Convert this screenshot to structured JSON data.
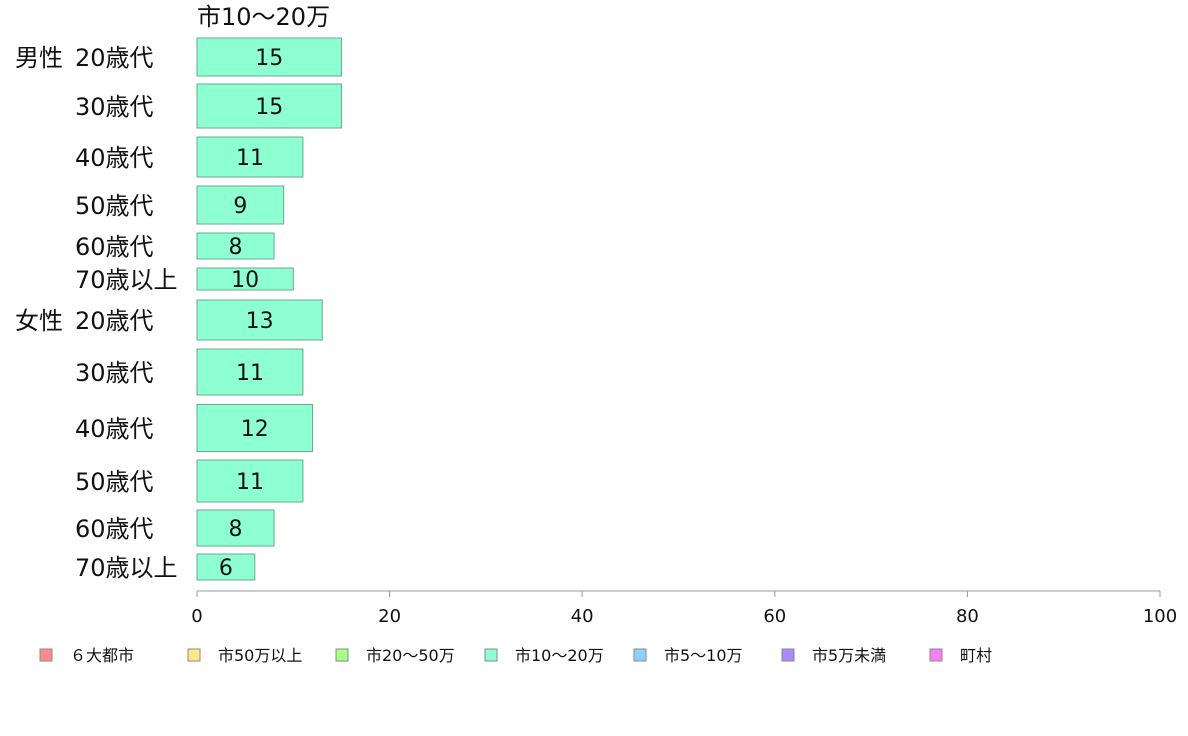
{
  "chart_data": {
    "type": "bar",
    "orientation": "horizontal",
    "series_header": "市10〜20万",
    "groups": [
      {
        "name": "男性",
        "rows": [
          {
            "label": "20歳代",
            "value": 15
          },
          {
            "label": "30歳代",
            "value": 15
          },
          {
            "label": "40歳代",
            "value": 11
          },
          {
            "label": "50歳代",
            "value": 9
          },
          {
            "label": "60歳代",
            "value": 8
          },
          {
            "label": "70歳以上",
            "value": 10
          }
        ]
      },
      {
        "name": "女性",
        "rows": [
          {
            "label": "20歳代",
            "value": 13
          },
          {
            "label": "30歳代",
            "value": 11
          },
          {
            "label": "40歳代",
            "value": 12
          },
          {
            "label": "50歳代",
            "value": 11
          },
          {
            "label": "60歳代",
            "value": 8
          },
          {
            "label": "70歳以上",
            "value": 6
          }
        ]
      }
    ],
    "xlim": [
      0,
      100
    ],
    "xticks": [
      0,
      20,
      40,
      60,
      80,
      100
    ],
    "bar_color": "#8effd0",
    "legend_position": "bottom",
    "legend": [
      {
        "name": "６大都市",
        "color": "#ff8a8a"
      },
      {
        "name": "市50万以上",
        "color": "#ffe88a"
      },
      {
        "name": "市20〜50万",
        "color": "#a6ff8a"
      },
      {
        "name": "市10〜20万",
        "color": "#8effd0"
      },
      {
        "name": "市5〜10万",
        "color": "#8ccfff"
      },
      {
        "name": "市5万未満",
        "color": "#a98aff"
      },
      {
        "name": "町村",
        "color": "#f77ef0"
      }
    ]
  }
}
